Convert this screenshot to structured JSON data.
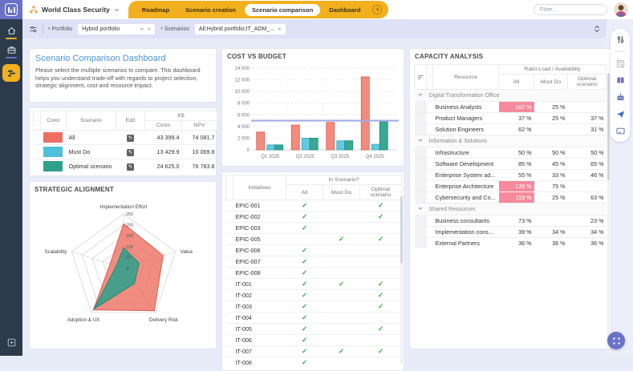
{
  "topbar": {
    "workspace": "World Class Security",
    "tabs": [
      {
        "label": "Roadmap",
        "active": false
      },
      {
        "label": "Scenario creation",
        "active": false
      },
      {
        "label": "Scenario comparison",
        "active": true
      },
      {
        "label": "Dashboard",
        "active": false
      }
    ],
    "add_tab_label": "+",
    "filter_placeholder": "Filter..."
  },
  "filterbar": {
    "portfolio_label": "Portfolio",
    "portfolio_value": "Hybrid portfolio",
    "scenarios_label": "Scenarios",
    "scenarios_value": "All;Hybrid portfolio;IT_ADM_..."
  },
  "sidebar_icons": [
    "home-icon",
    "briefcase-icon",
    "portfolio-roadmap-icon",
    "add-square-icon"
  ],
  "right_toolbar_icons": [
    "sliders-icon",
    "save-icon",
    "book-icon",
    "robot-icon",
    "send-icon",
    "card-icon"
  ],
  "fab_icon": "expand-icon",
  "colors": {
    "accent_yellow": "#F2B01E",
    "scenario_all": "#EE6F62",
    "scenario_must_do": "#4FC0DA",
    "scenario_optimal": "#2DA18C",
    "overload_pink": "#F7899C",
    "check_green": "#2FA832",
    "budget_line": "#A6ABE8",
    "title_blue": "#4B96DB"
  },
  "panels": {
    "dashboard": {
      "title": "Scenario Comparison Dashboard",
      "description": "Please select the multiple scenarios to compare. This dashboard helps you understand trade-off with regards to project selection, strategic alignment, cost and resource impact."
    },
    "scenario_table": {
      "col_color": "Color",
      "col_scenario": "Scenario",
      "col_edit": "Edit",
      "group_ks": "K$",
      "col_costs": "Costs",
      "col_npv": "NPV",
      "rows": [
        {
          "color": "#EE6F62",
          "name": "All",
          "costs": "43 399.4",
          "npv": "74 081.7"
        },
        {
          "color": "#4FC0DA",
          "name": "Must Do",
          "costs": "13 429.9",
          "npv": "10 069.8"
        },
        {
          "color": "#2DA18C",
          "name": "Optimal scenario",
          "costs": "24 625.0",
          "npv": "76 783.8"
        }
      ]
    },
    "cost_vs_budget": {
      "title": "COST VS BUDGET"
    },
    "strategic_alignment": {
      "title": "STRATEGIC ALIGNMENT"
    },
    "initiatives": {
      "col_initiatives": "Initiatives",
      "group_header": "In Scenario?",
      "col_all": "All",
      "col_must": "Must Do",
      "col_optimal": "Optimal scenario",
      "rows": [
        {
          "id": "EPIC-001",
          "checks": [
            true,
            false,
            true
          ]
        },
        {
          "id": "EPIC-002",
          "checks": [
            true,
            false,
            true
          ]
        },
        {
          "id": "EPIC-003",
          "checks": [
            true,
            false,
            false
          ]
        },
        {
          "id": "EPIC-005",
          "checks": [
            false,
            true,
            true
          ]
        },
        {
          "id": "EPIC-006",
          "checks": [
            true,
            false,
            false
          ]
        },
        {
          "id": "EPIC-007",
          "checks": [
            true,
            false,
            false
          ]
        },
        {
          "id": "EPIC-008",
          "checks": [
            true,
            false,
            false
          ]
        },
        {
          "id": "IT-001",
          "checks": [
            true,
            true,
            true
          ]
        },
        {
          "id": "IT-002",
          "checks": [
            true,
            false,
            true
          ]
        },
        {
          "id": "IT-003",
          "checks": [
            true,
            false,
            true
          ]
        },
        {
          "id": "IT-004",
          "checks": [
            true,
            false,
            false
          ]
        },
        {
          "id": "IT-005",
          "checks": [
            true,
            false,
            true
          ]
        },
        {
          "id": "IT-006",
          "checks": [
            true,
            false,
            false
          ]
        },
        {
          "id": "IT-007",
          "checks": [
            true,
            true,
            true
          ]
        },
        {
          "id": "IT-008",
          "checks": [
            true,
            false,
            false
          ]
        }
      ]
    },
    "capacity": {
      "title": "CAPACITY ANALYSIS",
      "col_resource": "Resource",
      "group_header": "Ratio Load / Availability",
      "col_all": "All",
      "col_must": "Must Do",
      "col_optimal": "Optimal scenario",
      "groups": [
        {
          "name": "Digital Transformation Office",
          "rows": [
            {
              "name": "Business Analysts",
              "all": "162 %",
              "all_over": true,
              "must": "25 %",
              "opt": ""
            },
            {
              "name": "Product Managers",
              "all": "37 %",
              "all_over": false,
              "must": "25 %",
              "opt": "37 %"
            },
            {
              "name": "Solution Engineers",
              "all": "62 %",
              "all_over": false,
              "must": "",
              "opt": "31 %"
            }
          ]
        },
        {
          "name": "Information & Solutions",
          "rows": [
            {
              "name": "Infrastructure",
              "all": "50 %",
              "all_over": false,
              "must": "50 %",
              "opt": "50 %"
            },
            {
              "name": "Software Development",
              "all": "85 %",
              "all_over": false,
              "must": "45 %",
              "opt": "65 %"
            },
            {
              "name": "Enterprise System ad...",
              "all": "55 %",
              "all_over": false,
              "must": "33 %",
              "opt": "46 %"
            },
            {
              "name": "Enterprise Architecture",
              "all": "139 %",
              "all_over": true,
              "must": "75 %",
              "opt": ""
            },
            {
              "name": "Cybersecurity and Co...",
              "all": "119 %",
              "all_over": true,
              "must": "25 %",
              "opt": "63 %"
            }
          ]
        },
        {
          "name": "Shared Resources",
          "rows": [
            {
              "name": "Business consultants",
              "all": "73 %",
              "all_over": false,
              "must": "",
              "opt": "23 %"
            },
            {
              "name": "Implementation consul...",
              "all": "39 %",
              "all_over": false,
              "must": "34 %",
              "opt": "34 %"
            },
            {
              "name": "External Partners",
              "all": "36 %",
              "all_over": false,
              "must": "36 %",
              "opt": "36 %"
            }
          ]
        }
      ]
    }
  },
  "chart_data": [
    {
      "type": "bar",
      "title": "COST VS BUDGET",
      "categories": [
        "Q1 2025",
        "Q2 2025",
        "Q3 2025",
        "Q4 2025"
      ],
      "series": [
        {
          "name": "All",
          "color": "#F28B7D",
          "border": "#E05A4E",
          "values": [
            3050,
            4250,
            4700,
            12500
          ]
        },
        {
          "name": "Must Do",
          "color": "#63C9E0",
          "border": "#2FA9C6",
          "values": [
            850,
            2000,
            1550,
            950
          ]
        },
        {
          "name": "Optimal scenario",
          "color": "#3AA893",
          "border": "#1D8A76",
          "values": [
            850,
            2000,
            1550,
            4800
          ]
        }
      ],
      "budget_line": 5000,
      "ylim": [
        0,
        14000
      ],
      "ytick_step": 2000,
      "grid": true,
      "legend": "none"
    },
    {
      "type": "radar",
      "title": "STRATEGIC ALIGNMENT",
      "axes": [
        "Implementation Effort",
        "Value",
        "Delivery Risk",
        "Adoption & UX",
        "Scalability"
      ],
      "rings": [
        0,
        50,
        100,
        150,
        200,
        250
      ],
      "max": 250,
      "series": [
        {
          "name": "All",
          "color": "#EE6F62",
          "border": "#E05A4E",
          "opacity": 0.8,
          "values": [
            205,
            190,
            240,
            235,
            65
          ]
        },
        {
          "name": "Optimal scenario",
          "color": "#2DA18C",
          "border": "#1F8A75",
          "opacity": 0.88,
          "values": [
            95,
            75,
            85,
            230,
            35
          ]
        }
      ],
      "legend": "none"
    }
  ]
}
